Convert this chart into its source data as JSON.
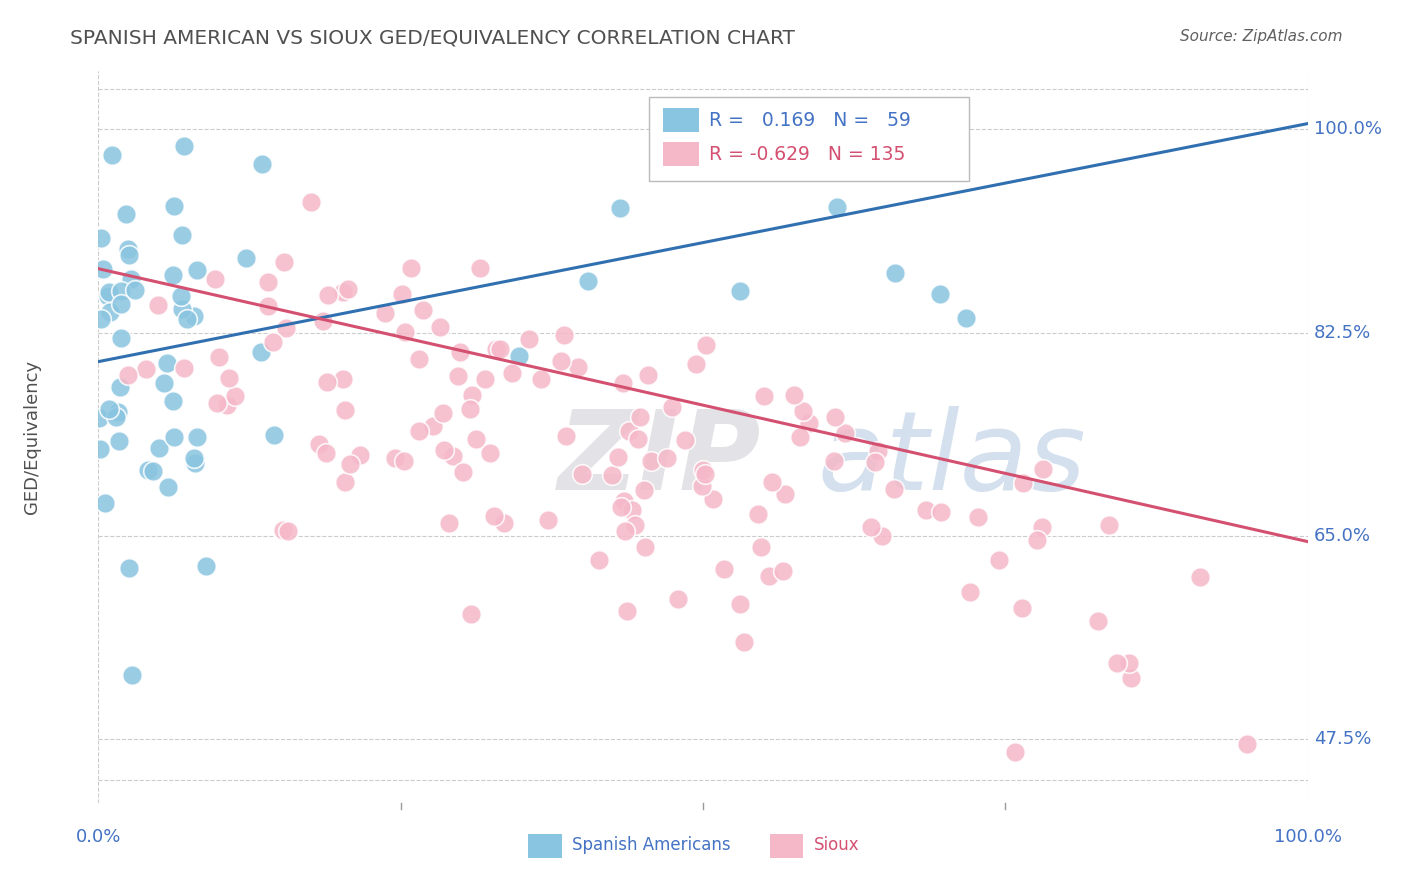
{
  "title": "SPANISH AMERICAN VS SIOUX GED/EQUIVALENCY CORRELATION CHART",
  "source": "Source: ZipAtlas.com",
  "ylabel": "GED/Equivalency",
  "xlim": [
    0.0,
    1.0
  ],
  "ylim": [
    0.42,
    1.05
  ],
  "yticks": [
    0.475,
    0.65,
    0.825,
    1.0
  ],
  "ytick_labels": [
    "47.5%",
    "65.0%",
    "82.5%",
    "100.0%"
  ],
  "xtick_labels": [
    "0.0%",
    "100.0%"
  ],
  "blue_R": 0.169,
  "blue_N": 59,
  "pink_R": -0.629,
  "pink_N": 135,
  "blue_scatter_color": "#89c4e0",
  "pink_scatter_color": "#f5b8c8",
  "blue_line_color": "#3070b0",
  "pink_line_color": "#d45070",
  "legend_label_blue": "Spanish Americans",
  "legend_label_pink": "Sioux",
  "background_color": "#ffffff",
  "grid_color": "#cccccc",
  "title_color": "#505050",
  "tick_color": "#4472c4",
  "ylabel_color": "#505050",
  "blue_trend_y0": 0.8,
  "blue_trend_y1": 1.005,
  "pink_trend_y0": 0.88,
  "pink_trend_y1": 0.645
}
